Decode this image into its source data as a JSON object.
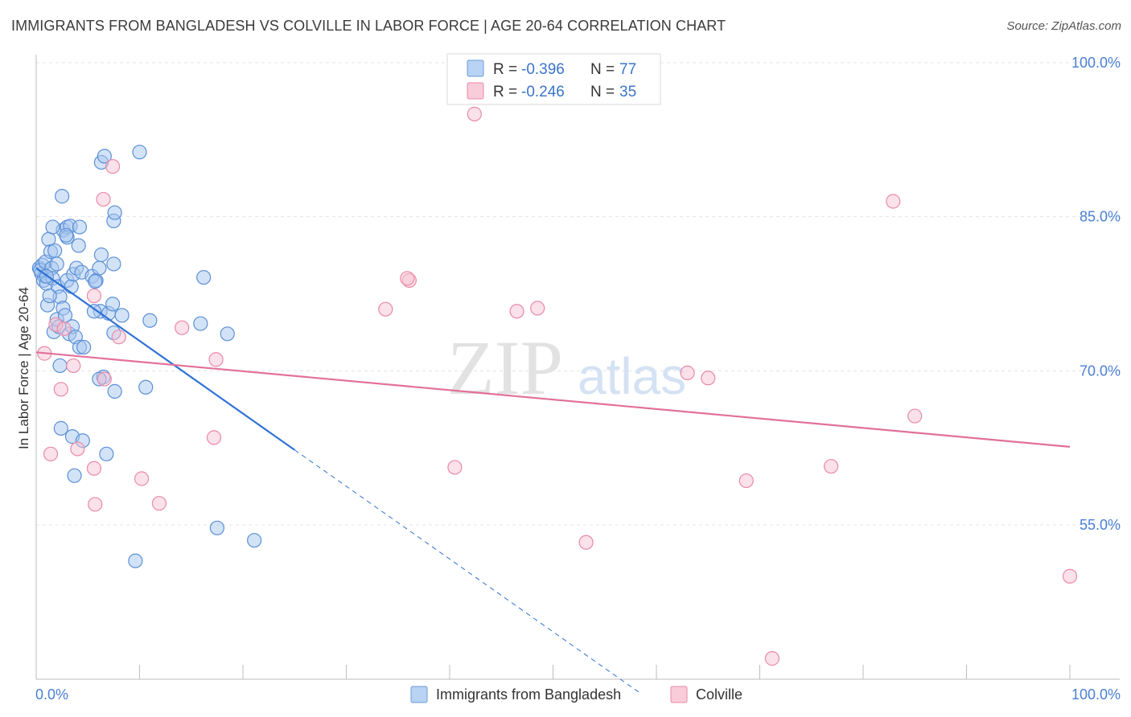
{
  "title": "IMMIGRANTS FROM BANGLADESH VS COLVILLE IN LABOR FORCE | AGE 20-64 CORRELATION CHART",
  "source": "Source: ZipAtlas.com",
  "watermark": {
    "main": "ZIP",
    "sub": "atlas"
  },
  "chart_data": {
    "type": "scatter",
    "ylabel": "In Labor Force | Age 20-64",
    "xlim": [
      0,
      100
    ],
    "ylim": [
      40,
      100
    ],
    "x_tick_labels": [
      "0.0%",
      "100.0%"
    ],
    "y_ticks": [
      55,
      70,
      85,
      100
    ],
    "y_tick_labels": [
      "55.0%",
      "70.0%",
      "85.0%",
      "100.0%"
    ],
    "grid": true,
    "legend_placement": "top-center",
    "series": [
      {
        "name": "Immigrants from Bangladesh",
        "color": "#a8c8f0",
        "stroke": "#5b8fd6",
        "line_color": "#2f72d6",
        "R": "-0.396",
        "N": "77",
        "trend": {
          "x0": 0,
          "y0": 80.0,
          "x1": 25.0,
          "y1": 62.3,
          "dash_x1": 58.6,
          "dash_y1": 38.5
        },
        "points": [
          [
            0.3,
            80.0
          ],
          [
            0.5,
            79.5
          ],
          [
            0.6,
            80.3
          ],
          [
            0.8,
            79.2
          ],
          [
            0.7,
            78.8
          ],
          [
            0.4,
            79.8
          ],
          [
            0.9,
            80.6
          ],
          [
            1.0,
            78.5
          ],
          [
            1.2,
            82.8
          ],
          [
            1.4,
            81.6
          ],
          [
            1.5,
            80.0
          ],
          [
            1.6,
            79.0
          ],
          [
            1.8,
            81.7
          ],
          [
            2.0,
            80.4
          ],
          [
            2.1,
            78.2
          ],
          [
            2.3,
            77.2
          ],
          [
            1.1,
            76.4
          ],
          [
            1.3,
            77.3
          ],
          [
            1.7,
            73.8
          ],
          [
            2.0,
            75.0
          ],
          [
            2.2,
            74.3
          ],
          [
            2.6,
            76.1
          ],
          [
            2.8,
            75.4
          ],
          [
            3.2,
            73.6
          ],
          [
            3.5,
            74.3
          ],
          [
            3.8,
            73.3
          ],
          [
            4.2,
            72.3
          ],
          [
            4.6,
            72.3
          ],
          [
            3.0,
            78.8
          ],
          [
            3.4,
            78.2
          ],
          [
            3.6,
            79.4
          ],
          [
            3.9,
            80.0
          ],
          [
            4.4,
            79.6
          ],
          [
            5.4,
            79.2
          ],
          [
            5.8,
            78.8
          ],
          [
            5.7,
            78.7
          ],
          [
            6.1,
            80.0
          ],
          [
            2.6,
            83.7
          ],
          [
            3.0,
            84.0
          ],
          [
            3.3,
            84.1
          ],
          [
            3.0,
            83.0
          ],
          [
            2.9,
            83.2
          ],
          [
            4.2,
            84.0
          ],
          [
            4.1,
            82.2
          ],
          [
            1.6,
            84.0
          ],
          [
            2.5,
            87.0
          ],
          [
            6.3,
            81.3
          ],
          [
            7.5,
            80.4
          ],
          [
            6.2,
            75.8
          ],
          [
            7.0,
            75.6
          ],
          [
            7.5,
            73.7
          ],
          [
            8.3,
            75.4
          ],
          [
            11.0,
            74.9
          ],
          [
            15.9,
            74.6
          ],
          [
            18.5,
            73.6
          ],
          [
            16.2,
            79.1
          ],
          [
            5.6,
            75.8
          ],
          [
            7.4,
            76.5
          ],
          [
            6.5,
            69.4
          ],
          [
            6.1,
            69.2
          ],
          [
            7.6,
            68.0
          ],
          [
            10.6,
            68.4
          ],
          [
            2.3,
            70.5
          ],
          [
            2.4,
            64.4
          ],
          [
            3.5,
            63.6
          ],
          [
            4.5,
            63.2
          ],
          [
            6.8,
            61.9
          ],
          [
            3.7,
            59.8
          ],
          [
            7.5,
            84.6
          ],
          [
            7.6,
            85.4
          ],
          [
            6.3,
            90.3
          ],
          [
            6.6,
            90.9
          ],
          [
            10.0,
            91.3
          ],
          [
            17.5,
            54.7
          ],
          [
            21.1,
            53.5
          ],
          [
            9.6,
            51.5
          ],
          [
            1.0,
            79.2
          ]
        ]
      },
      {
        "name": "Colville",
        "color": "#f7c4d4",
        "stroke": "#e98aa8",
        "line_color": "#e2709a",
        "R": "-0.246",
        "N": "35",
        "trend": {
          "x0": 0,
          "y0": 71.8,
          "x1": 100,
          "y1": 62.6
        },
        "points": [
          [
            0.8,
            71.7
          ],
          [
            1.9,
            74.5
          ],
          [
            2.4,
            68.2
          ],
          [
            2.7,
            74.1
          ],
          [
            3.6,
            70.5
          ],
          [
            1.4,
            61.9
          ],
          [
            4.0,
            62.4
          ],
          [
            5.6,
            77.3
          ],
          [
            5.6,
            60.5
          ],
          [
            5.7,
            57.0
          ],
          [
            6.6,
            69.2
          ],
          [
            6.5,
            86.7
          ],
          [
            8.0,
            73.3
          ],
          [
            7.4,
            89.9
          ],
          [
            10.2,
            59.5
          ],
          [
            11.9,
            57.1
          ],
          [
            14.1,
            74.2
          ],
          [
            17.4,
            71.1
          ],
          [
            17.2,
            63.5
          ],
          [
            33.8,
            76.0
          ],
          [
            36.1,
            78.8
          ],
          [
            42.4,
            95.0
          ],
          [
            40.5,
            60.6
          ],
          [
            46.5,
            75.8
          ],
          [
            48.5,
            76.1
          ],
          [
            53.2,
            53.3
          ],
          [
            63.0,
            69.8
          ],
          [
            65.0,
            69.3
          ],
          [
            68.7,
            59.3
          ],
          [
            76.9,
            60.7
          ],
          [
            85.0,
            65.6
          ],
          [
            82.9,
            86.5
          ],
          [
            71.2,
            42.0
          ],
          [
            100.0,
            50.0
          ],
          [
            35.9,
            79.0
          ]
        ]
      }
    ]
  }
}
